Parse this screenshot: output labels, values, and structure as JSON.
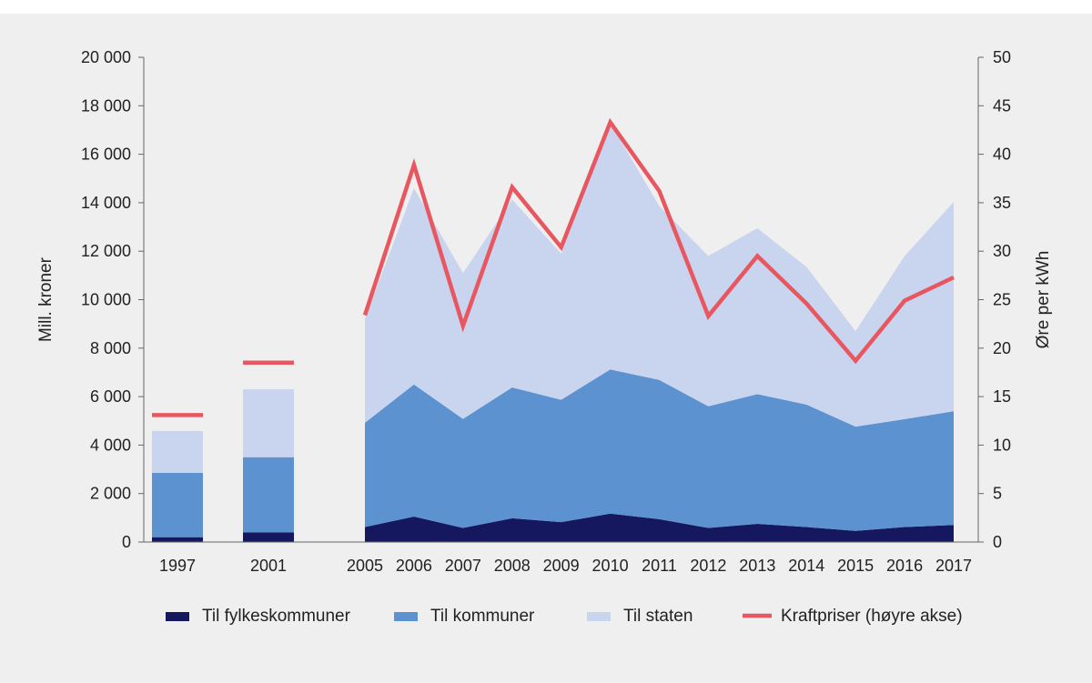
{
  "chart_data": {
    "type": "area",
    "x_left_bars": [
      "1997",
      "2001"
    ],
    "x_area": [
      "2005",
      "2006",
      "2007",
      "2008",
      "2009",
      "2010",
      "2011",
      "2012",
      "2013",
      "2014",
      "2015",
      "2016",
      "2017"
    ],
    "y_left": {
      "label": "Mill. kroner",
      "range": [
        0,
        20000
      ],
      "ticks": [
        "0",
        "2 000",
        "4 000",
        "6 000",
        "8 000",
        "10 000",
        "12 000",
        "14 000",
        "16 000",
        "18 000",
        "20 000"
      ],
      "tick_values": [
        0,
        2000,
        4000,
        6000,
        8000,
        10000,
        12000,
        14000,
        16000,
        18000,
        20000
      ]
    },
    "y_right": {
      "label": "Øre per kWh",
      "range": [
        0,
        50
      ],
      "ticks": [
        "0",
        "5",
        "10",
        "15",
        "20",
        "25",
        "30",
        "35",
        "40",
        "45",
        "50"
      ],
      "tick_values": [
        0,
        5,
        10,
        15,
        20,
        25,
        30,
        35,
        40,
        45,
        50
      ]
    },
    "series": [
      {
        "name": "Til fylkeskommuner",
        "color": "#15185f",
        "bar_values": [
          200,
          400
        ],
        "values": [
          620,
          1050,
          580,
          980,
          820,
          1170,
          940,
          580,
          750,
          620,
          460,
          620,
          700
        ]
      },
      {
        "name": "Til kommuner",
        "color": "#5b92cf",
        "bar_values": [
          2650,
          3100
        ],
        "values": [
          4300,
          5450,
          4500,
          5400,
          5050,
          5950,
          5750,
          5020,
          5350,
          5050,
          4300,
          4450,
          4700
        ]
      },
      {
        "name": "Til staten",
        "color": "#c9d4ee",
        "bar_values": [
          1730,
          2800
        ],
        "values": [
          4280,
          8100,
          6020,
          7750,
          6030,
          10180,
          7170,
          6200,
          6850,
          5680,
          3940,
          6730,
          8630
        ]
      },
      {
        "name": "Kraftpriser (høyre akse)",
        "color": "#e8575f",
        "axis": "right",
        "bar_values": [
          13.1,
          18.5
        ],
        "values": [
          23.4,
          38.9,
          22.3,
          36.6,
          30.4,
          43.3,
          36.2,
          23.3,
          29.5,
          24.6,
          18.7,
          24.9,
          27.3
        ]
      }
    ]
  }
}
